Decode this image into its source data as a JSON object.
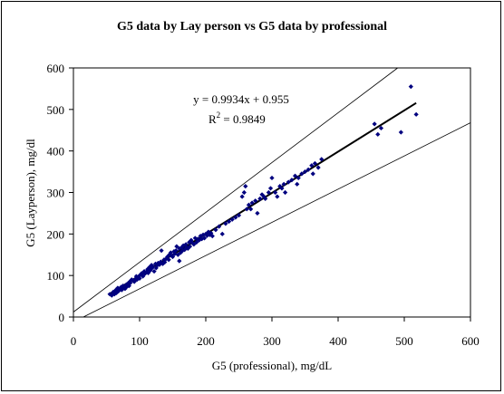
{
  "chart_data": {
    "type": "scatter",
    "title": "G5 data by Lay person vs G5 data by professional",
    "xlabel": "G5 (professional), mg/dL",
    "ylabel": "G5 (Layperson), mg/dl",
    "xlim": [
      0,
      600
    ],
    "ylim": [
      0,
      600
    ],
    "xticks": [
      0,
      100,
      200,
      300,
      400,
      500,
      600
    ],
    "yticks": [
      0,
      100,
      200,
      300,
      400,
      500,
      600
    ],
    "grid": false,
    "legend": "none",
    "marker_color": "#00007f",
    "line_color": "#000000",
    "annotations": {
      "equation": "y = 0.9934x + 0.955",
      "r2_base": "R",
      "r2_sup": "2",
      "r2_rest": " = 0.9849"
    },
    "trendline": {
      "slope": 0.9934,
      "intercept": 0.955,
      "x_range": [
        55,
        518
      ]
    },
    "upper_bound": {
      "slope": 1.2,
      "intercept": 12,
      "x_range": [
        0,
        520
      ]
    },
    "lower_bound": {
      "slope": 0.8,
      "intercept": -12,
      "x_range": [
        15,
        600
      ]
    },
    "points": [
      [
        55,
        55
      ],
      [
        58,
        52
      ],
      [
        60,
        60
      ],
      [
        62,
        55
      ],
      [
        64,
        65
      ],
      [
        65,
        58
      ],
      [
        67,
        70
      ],
      [
        68,
        62
      ],
      [
        70,
        68
      ],
      [
        72,
        72
      ],
      [
        73,
        65
      ],
      [
        75,
        75
      ],
      [
        76,
        70
      ],
      [
        78,
        68
      ],
      [
        80,
        78
      ],
      [
        80,
        72
      ],
      [
        82,
        80
      ],
      [
        84,
        75
      ],
      [
        85,
        85
      ],
      [
        86,
        82
      ],
      [
        88,
        90
      ],
      [
        90,
        88
      ],
      [
        92,
        85
      ],
      [
        94,
        92
      ],
      [
        95,
        98
      ],
      [
        96,
        90
      ],
      [
        98,
        95
      ],
      [
        100,
        100
      ],
      [
        100,
        93
      ],
      [
        103,
        105
      ],
      [
        105,
        98
      ],
      [
        107,
        110
      ],
      [
        108,
        104
      ],
      [
        110,
        108
      ],
      [
        112,
        115
      ],
      [
        113,
        106
      ],
      [
        115,
        120
      ],
      [
        116,
        112
      ],
      [
        118,
        125
      ],
      [
        119,
        118
      ],
      [
        120,
        122
      ],
      [
        122,
        110
      ],
      [
        124,
        128
      ],
      [
        125,
        118
      ],
      [
        127,
        125
      ],
      [
        128,
        130
      ],
      [
        130,
        126
      ],
      [
        132,
        133
      ],
      [
        133,
        160
      ],
      [
        135,
        128
      ],
      [
        137,
        138
      ],
      [
        138,
        132
      ],
      [
        140,
        140
      ],
      [
        142,
        145
      ],
      [
        144,
        138
      ],
      [
        145,
        150
      ],
      [
        147,
        155
      ],
      [
        148,
        148
      ],
      [
        150,
        145
      ],
      [
        152,
        158
      ],
      [
        153,
        152
      ],
      [
        155,
        160
      ],
      [
        156,
        170
      ],
      [
        158,
        150
      ],
      [
        160,
        165
      ],
      [
        160,
        135
      ],
      [
        162,
        155
      ],
      [
        164,
        168
      ],
      [
        165,
        160
      ],
      [
        166,
        172
      ],
      [
        168,
        162
      ],
      [
        170,
        175
      ],
      [
        171,
        168
      ],
      [
        173,
        165
      ],
      [
        175,
        180
      ],
      [
        176,
        170
      ],
      [
        178,
        185
      ],
      [
        180,
        178
      ],
      [
        182,
        175
      ],
      [
        184,
        190
      ],
      [
        186,
        180
      ],
      [
        188,
        188
      ],
      [
        190,
        185
      ],
      [
        192,
        195
      ],
      [
        194,
        188
      ],
      [
        196,
        198
      ],
      [
        198,
        190
      ],
      [
        200,
        200
      ],
      [
        202,
        196
      ],
      [
        204,
        205
      ],
      [
        206,
        198
      ],
      [
        208,
        202
      ],
      [
        210,
        195
      ],
      [
        215,
        210
      ],
      [
        220,
        218
      ],
      [
        225,
        200
      ],
      [
        230,
        225
      ],
      [
        235,
        230
      ],
      [
        240,
        235
      ],
      [
        245,
        240
      ],
      [
        250,
        245
      ],
      [
        255,
        290
      ],
      [
        258,
        300
      ],
      [
        260,
        315
      ],
      [
        262,
        260
      ],
      [
        265,
        270
      ],
      [
        268,
        260
      ],
      [
        270,
        275
      ],
      [
        275,
        280
      ],
      [
        278,
        250
      ],
      [
        282,
        285
      ],
      [
        285,
        295
      ],
      [
        288,
        290
      ],
      [
        290,
        285
      ],
      [
        295,
        300
      ],
      [
        298,
        310
      ],
      [
        300,
        335
      ],
      [
        305,
        300
      ],
      [
        308,
        290
      ],
      [
        312,
        315
      ],
      [
        315,
        310
      ],
      [
        318,
        320
      ],
      [
        320,
        300
      ],
      [
        325,
        325
      ],
      [
        330,
        330
      ],
      [
        335,
        340
      ],
      [
        338,
        320
      ],
      [
        340,
        335
      ],
      [
        345,
        345
      ],
      [
        350,
        350
      ],
      [
        355,
        355
      ],
      [
        360,
        365
      ],
      [
        362,
        345
      ],
      [
        365,
        370
      ],
      [
        370,
        360
      ],
      [
        375,
        380
      ],
      [
        455,
        465
      ],
      [
        460,
        440
      ],
      [
        465,
        455
      ],
      [
        495,
        445
      ],
      [
        510,
        555
      ],
      [
        518,
        488
      ]
    ]
  }
}
